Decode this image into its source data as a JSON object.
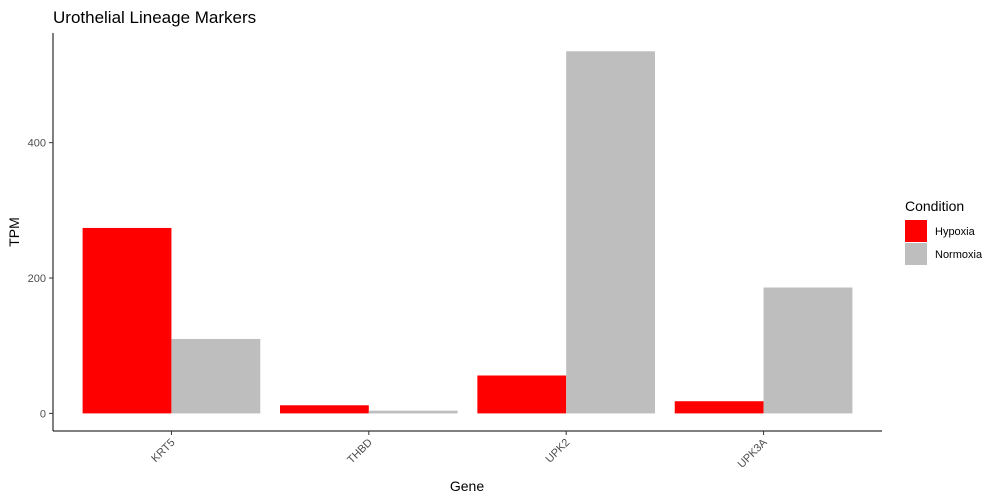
{
  "chart_data": {
    "type": "bar",
    "title": "Urothelial Lineage Markers",
    "xlabel": "Gene",
    "ylabel": "TPM",
    "categories": [
      "KRT5",
      "THBD",
      "UPK2",
      "UPK3A"
    ],
    "series": [
      {
        "name": "Hypoxia",
        "color": "#ff0000",
        "values": [
          274,
          12,
          56,
          18
        ]
      },
      {
        "name": "Normoxia",
        "color": "#bebebe",
        "values": [
          110,
          4,
          535,
          186
        ]
      }
    ],
    "yticks": [
      0,
      200,
      400
    ],
    "ylim": [
      -26,
      562
    ],
    "grid": false,
    "legend": {
      "title": "Condition",
      "placement": "right"
    }
  }
}
